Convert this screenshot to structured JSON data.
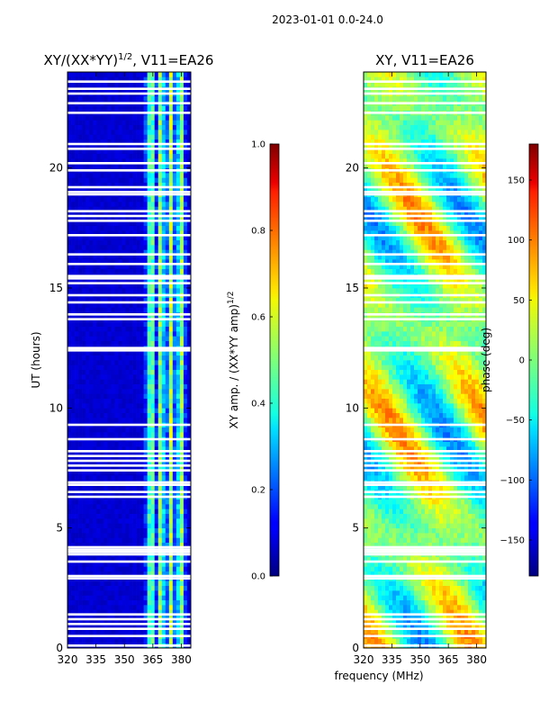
{
  "figure": {
    "suptitle": "2023-01-01 0.0-24.0",
    "shared_xlabel": "frequency (MHz)"
  },
  "chart_data": [
    {
      "type": "heatmap",
      "title_main": "XY/(XX*YY)",
      "title_sup": "1/2",
      "title_rest": ", V11=EA26",
      "xlabel": "",
      "ylabel": "UT (hours)",
      "xlim": [
        320,
        385
      ],
      "ylim": [
        0,
        24
      ],
      "xticks": [
        320,
        335,
        350,
        365,
        380
      ],
      "yticks": [
        0,
        5,
        10,
        15,
        20
      ],
      "colorscale": "jet",
      "colorbar": {
        "label_main": "XY amp. / (XX*YY amp)",
        "label_sup": "1/2",
        "range": [
          0.0,
          1.0
        ],
        "ticks": [
          "0.0",
          "0.2",
          "0.4",
          "0.6",
          "0.8",
          "1.0"
        ]
      },
      "description_values": {
        "background_level": 0.08,
        "bright_channel_band_MHz": [
          361,
          384
        ],
        "bright_level": 0.35,
        "flagged_hours": [
          0.1,
          0.5,
          0.8,
          1.0,
          1.2,
          1.4,
          2.9,
          3.0,
          3.6,
          3.9,
          4.0,
          4.1,
          4.2,
          6.3,
          6.5,
          6.8,
          6.9,
          7.4,
          7.6,
          7.8,
          8.0,
          8.2,
          8.7,
          9.3,
          12.4,
          12.5,
          13.7,
          13.9,
          14.4,
          14.7,
          15.2,
          15.4,
          15.5,
          16.0,
          16.4,
          17.2,
          17.8,
          18.0,
          18.2,
          18.9,
          19.0,
          19.2,
          19.9,
          20.2,
          20.8,
          21.0,
          22.3,
          22.7,
          23.1,
          23.3,
          23.6
        ]
      }
    },
    {
      "type": "heatmap",
      "title": "XY, V11=EA26",
      "xlabel": "",
      "ylabel": "",
      "xlim": [
        320,
        385
      ],
      "ylim": [
        0,
        24
      ],
      "xticks": [
        320,
        335,
        350,
        365,
        380
      ],
      "yticks": [
        0,
        5,
        10,
        15,
        20
      ],
      "colorscale": "jet",
      "colorbar": {
        "label": "phase (deg)",
        "range": [
          -180,
          180
        ],
        "ticks": [
          "150",
          "100",
          "50",
          "0",
          "−50",
          "−100",
          "−150"
        ],
        "tick_values": [
          150,
          100,
          50,
          0,
          -50,
          -100,
          -150
        ]
      },
      "description_values": {
        "phase_mean_deg": 0,
        "phase_spread_deg": 90,
        "flagged_hours": [
          0.1,
          0.5,
          0.8,
          1.0,
          1.2,
          1.4,
          2.9,
          3.0,
          3.6,
          3.9,
          4.0,
          4.1,
          4.2,
          6.3,
          6.5,
          6.8,
          6.9,
          7.4,
          7.6,
          7.8,
          8.0,
          8.2,
          8.7,
          9.3,
          12.4,
          12.5,
          13.7,
          13.9,
          14.4,
          14.7,
          15.2,
          15.4,
          15.5,
          16.0,
          16.4,
          17.2,
          17.8,
          18.0,
          18.2,
          18.9,
          19.0,
          19.2,
          19.9,
          20.2,
          20.8,
          21.0,
          22.3,
          22.7,
          23.1,
          23.3,
          23.6
        ]
      }
    }
  ]
}
